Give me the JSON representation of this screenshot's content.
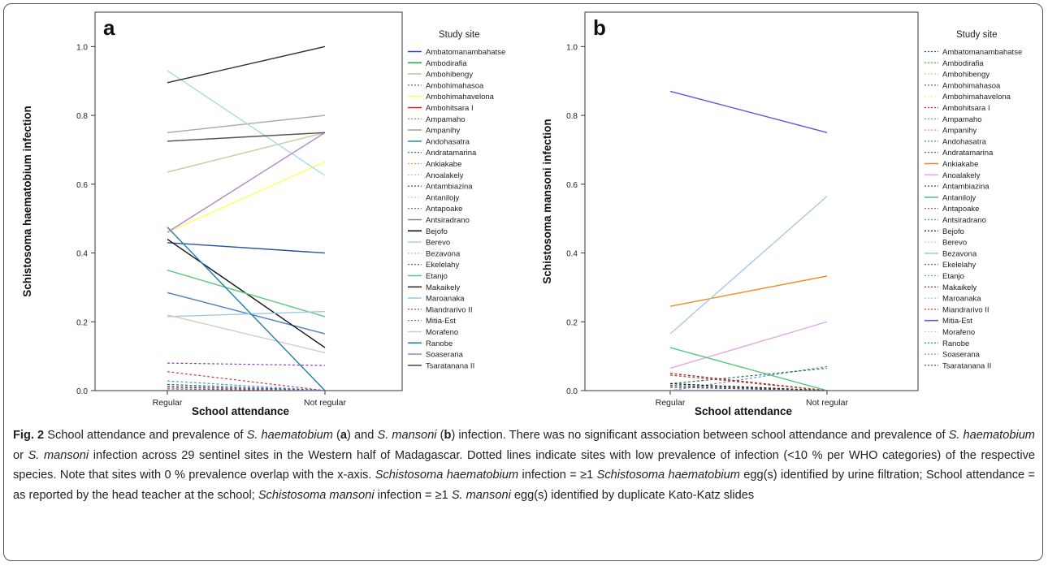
{
  "panels": [
    {
      "letter": "a",
      "legend_title": "Study site",
      "ylabel": "Schistosoma haematobium infection",
      "xlabel": "School attendance"
    },
    {
      "letter": "b",
      "legend_title": "Study site",
      "ylabel": "Schistosoma mansoni infection",
      "xlabel": "School attendance"
    }
  ],
  "chart_data": [
    {
      "type": "line",
      "panel": "a",
      "categories": [
        "Regular",
        "Not regular"
      ],
      "yticks": [
        "0.0",
        "0.2",
        "0.4",
        "0.6",
        "0.8",
        "1.0"
      ],
      "ylim": [
        0,
        1.1
      ],
      "xlabel": "School attendance",
      "ylabel": "Schistosoma haematobium infection",
      "legend_title": "Study site",
      "legend_position": "right",
      "series": [
        {
          "name": "Ambatomanambahatse",
          "color": "#2b4f9c",
          "dashed": false,
          "values": [
            0.43,
            0.4
          ]
        },
        {
          "name": "Ambodirafia",
          "color": "#2fa84f",
          "dashed": false,
          "values": null
        },
        {
          "name": "Ambohibengy",
          "color": "#c8c89a",
          "dashed": false,
          "values": [
            0.635,
            0.75
          ]
        },
        {
          "name": "Ambohimahasoa",
          "color": "#8a3fb0",
          "dashed": true,
          "values": [
            0.08,
            0.073
          ]
        },
        {
          "name": "Ambohimahavelona",
          "color": "#ffff55",
          "dashed": false,
          "values": [
            0.46,
            0.665
          ]
        },
        {
          "name": "Ambohitsara I",
          "color": "#e02020",
          "dashed": false,
          "values": null
        },
        {
          "name": "Ampamaho",
          "color": "#5a8fd0",
          "dashed": true,
          "values": [
            0.028,
            0.0
          ]
        },
        {
          "name": "Ampanihy",
          "color": "#a8a8a8",
          "dashed": false,
          "values": [
            0.75,
            0.8
          ]
        },
        {
          "name": "Andohasatra",
          "color": "#4a84c0",
          "dashed": false,
          "values": [
            0.285,
            0.165
          ]
        },
        {
          "name": "Andratamarina",
          "color": "#2c6e5a",
          "dashed": true,
          "values": [
            0.018,
            0.0
          ]
        },
        {
          "name": "Ankiakabe",
          "color": "#e8a020",
          "dashed": true,
          "values": null
        },
        {
          "name": "Anoalakely",
          "color": "#bbbbbb",
          "dashed": true,
          "values": null
        },
        {
          "name": "Antambiazina",
          "color": "#2c5e4a",
          "dashed": true,
          "values": [
            0.012,
            0.0
          ]
        },
        {
          "name": "Antanilojy",
          "color": "#cfcfcf",
          "dashed": true,
          "values": null
        },
        {
          "name": "Antapoake",
          "color": "#b04060",
          "dashed": true,
          "values": [
            0.055,
            0.0
          ]
        },
        {
          "name": "Antsiradrano",
          "color": "#888888",
          "dashed": false,
          "values": null
        },
        {
          "name": "Bejofo",
          "color": "#111111",
          "dashed": false,
          "values": [
            0.44,
            0.125
          ]
        },
        {
          "name": "Berevo",
          "color": "#a8dce0",
          "dashed": false,
          "values": [
            0.93,
            0.625
          ]
        },
        {
          "name": "Bezavona",
          "color": "#bbbbbb",
          "dashed": true,
          "values": null
        },
        {
          "name": "Ekelelahy",
          "color": "#5a4f90",
          "dashed": true,
          "values": null
        },
        {
          "name": "Etanjo",
          "color": "#5ac87a",
          "dashed": false,
          "values": [
            0.35,
            0.215
          ]
        },
        {
          "name": "Makaikely",
          "color": "#333333",
          "dashed": false,
          "values": [
            0.895,
            1.0
          ]
        },
        {
          "name": "Maroanaka",
          "color": "#a0c8e8",
          "dashed": false,
          "values": [
            0.215,
            0.23
          ]
        },
        {
          "name": "Miandrarivo II",
          "color": "#c04020",
          "dashed": true,
          "values": [
            0.005,
            0.0
          ]
        },
        {
          "name": "Mitia-Est",
          "color": "#6a5adf",
          "dashed": true,
          "values": [
            0.01,
            0.0
          ]
        },
        {
          "name": "Morafeno",
          "color": "#cccccc",
          "dashed": false,
          "values": [
            0.22,
            0.11
          ]
        },
        {
          "name": "Ranobe",
          "color": "#1e7fa8",
          "dashed": false,
          "values": [
            0.475,
            0.0
          ]
        },
        {
          "name": "Soaserana",
          "color": "#b088c8",
          "dashed": false,
          "values": [
            0.46,
            0.75
          ]
        },
        {
          "name": "Tsaratanana II",
          "color": "#555555",
          "dashed": false,
          "values": [
            0.725,
            0.75
          ]
        }
      ]
    },
    {
      "type": "line",
      "panel": "b",
      "categories": [
        "Regular",
        "Not regular"
      ],
      "yticks": [
        "0.0",
        "0.2",
        "0.4",
        "0.6",
        "0.8",
        "1.0"
      ],
      "ylim": [
        0,
        1.1
      ],
      "xlabel": "School attendance",
      "ylabel": "Schistosoma mansoni infection",
      "legend_title": "Study site",
      "legend_position": "right",
      "series": [
        {
          "name": "Ambatomanambahatse",
          "color": "#2b4f9c",
          "dashed": true,
          "values": [
            0.0,
            0.0
          ]
        },
        {
          "name": "Ambodirafia",
          "color": "#2fa84f",
          "dashed": true,
          "values": [
            0.0,
            0.0
          ]
        },
        {
          "name": "Ambohibengy",
          "color": "#c8c89a",
          "dashed": true,
          "values": [
            0.0,
            0.0
          ]
        },
        {
          "name": "Ambohimahasoa",
          "color": "#8a3fb0",
          "dashed": true,
          "values": [
            0.0,
            0.0
          ]
        },
        {
          "name": "Ambohimahavelona",
          "color": "#eeee99",
          "dashed": true,
          "values": [
            0.0,
            0.0
          ]
        },
        {
          "name": "Ambohitsara I",
          "color": "#c03030",
          "dashed": true,
          "values": [
            0.0,
            0.0
          ]
        },
        {
          "name": "Ampamaho",
          "color": "#5a8fd0",
          "dashed": true,
          "values": [
            0.0,
            0.07
          ]
        },
        {
          "name": "Ampanihy",
          "color": "#a8a8a8",
          "dashed": true,
          "values": [
            0.0,
            0.0
          ]
        },
        {
          "name": "Andohasatra",
          "color": "#4a84c0",
          "dashed": true,
          "values": [
            0.0,
            0.0
          ]
        },
        {
          "name": "Andratamarina",
          "color": "#2c6e5a",
          "dashed": true,
          "values": [
            0.02,
            0.065
          ]
        },
        {
          "name": "Ankiakabe",
          "color": "#f08a20",
          "dashed": false,
          "values": [
            0.245,
            0.333
          ]
        },
        {
          "name": "Anoalakely",
          "color": "#e0a8e8",
          "dashed": false,
          "values": [
            0.065,
            0.2
          ]
        },
        {
          "name": "Antambiazina",
          "color": "#2c5e4a",
          "dashed": true,
          "values": [
            0.015,
            0.0
          ]
        },
        {
          "name": "Antanilojy",
          "color": "#5ac87a",
          "dashed": false,
          "values": [
            0.125,
            0.0
          ]
        },
        {
          "name": "Antapoake",
          "color": "#b04060",
          "dashed": true,
          "values": [
            0.01,
            0.0
          ]
        },
        {
          "name": "Antsiradrano",
          "color": "#888888",
          "dashed": true,
          "values": [
            0.0,
            0.0
          ]
        },
        {
          "name": "Bejofo",
          "color": "#111111",
          "dashed": true,
          "values": [
            0.02,
            0.0
          ]
        },
        {
          "name": "Berevo",
          "color": "#a8dce0",
          "dashed": true,
          "values": [
            0.0,
            0.0
          ]
        },
        {
          "name": "Bezavona",
          "color": "#a8c8e8",
          "dashed": false,
          "values": [
            0.165,
            0.565
          ]
        },
        {
          "name": "Ekelelahy",
          "color": "#5a4f90",
          "dashed": true,
          "values": [
            0.01,
            0.0
          ]
        },
        {
          "name": "Etanjo",
          "color": "#5ac87a",
          "dashed": true,
          "values": [
            0.0,
            0.0
          ]
        },
        {
          "name": "Makaikely",
          "color": "#802020",
          "dashed": true,
          "values": [
            0.05,
            0.0
          ]
        },
        {
          "name": "Maroanaka",
          "color": "#a0c8e8",
          "dashed": true,
          "values": [
            0.0,
            0.0
          ]
        },
        {
          "name": "Miandrarivo II",
          "color": "#c04020",
          "dashed": true,
          "values": [
            0.045,
            0.0
          ]
        },
        {
          "name": "Mitia-Est",
          "color": "#5a5ae0",
          "dashed": false,
          "values": [
            0.87,
            0.75
          ]
        },
        {
          "name": "Morafeno",
          "color": "#cccccc",
          "dashed": true,
          "values": [
            0.0,
            0.0
          ]
        },
        {
          "name": "Ranobe",
          "color": "#1e7fa8",
          "dashed": true,
          "values": [
            0.0,
            0.0
          ]
        },
        {
          "name": "Soaserana",
          "color": "#b088c8",
          "dashed": true,
          "values": [
            0.0,
            0.0
          ]
        },
        {
          "name": "Tsaratanana II",
          "color": "#555555",
          "dashed": true,
          "values": [
            0.01,
            0.0
          ]
        }
      ]
    }
  ],
  "caption": {
    "fig_label": "Fig. 2",
    "segments": [
      {
        "t": " School attendance and prevalence of ",
        "s": "n"
      },
      {
        "t": "S. haematobium",
        "s": "i"
      },
      {
        "t": " (",
        "s": "n"
      },
      {
        "t": "a",
        "s": "b"
      },
      {
        "t": ") and ",
        "s": "n"
      },
      {
        "t": "S. mansoni",
        "s": "i"
      },
      {
        "t": " (",
        "s": "n"
      },
      {
        "t": "b",
        "s": "b"
      },
      {
        "t": ") infection. There was no significant association between school attendance and prevalence of ",
        "s": "n"
      },
      {
        "t": "S. haematobium",
        "s": "i"
      },
      {
        "t": " or ",
        "s": "n"
      },
      {
        "t": "S. mansoni",
        "s": "i"
      },
      {
        "t": " infection across 29 sentinel sites in the Western half of Madagascar. Dotted lines indicate sites with low prevalence of infection (<10 % per WHO categories) of the respective species. Note that sites with 0 % prevalence overlap with the x-axis. ",
        "s": "n"
      },
      {
        "t": "Schistosoma haematobium",
        "s": "i"
      },
      {
        "t": " infection = ≥1 ",
        "s": "n"
      },
      {
        "t": "Schistosoma haematobium",
        "s": "i"
      },
      {
        "t": " egg(s) identified by urine filtration; School attendance = as reported by the head teacher at the school; ",
        "s": "n"
      },
      {
        "t": "Schistosoma  mansoni",
        "s": "i"
      },
      {
        "t": " infection = ≥1 ",
        "s": "n"
      },
      {
        "t": "S. mansoni",
        "s": "i"
      },
      {
        "t": " egg(s) identified by duplicate Kato-Katz slides",
        "s": "n"
      }
    ]
  }
}
